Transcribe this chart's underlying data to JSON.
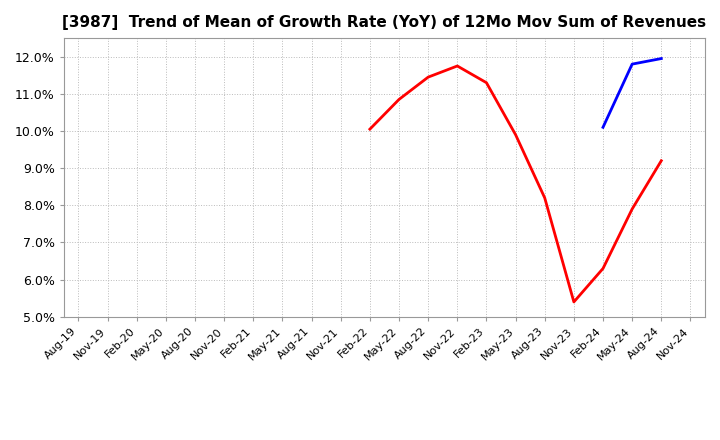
{
  "title": "[3987]  Trend of Mean of Growth Rate (YoY) of 12Mo Mov Sum of Revenues",
  "ylim": [
    0.05,
    0.125
  ],
  "yticks": [
    0.05,
    0.06,
    0.07,
    0.08,
    0.09,
    0.1,
    0.11,
    0.12
  ],
  "background_color": "#ffffff",
  "grid_color": "#bbbbbb",
  "x_labels": [
    "Aug-19",
    "Nov-19",
    "Feb-20",
    "May-20",
    "Aug-20",
    "Nov-20",
    "Feb-21",
    "May-21",
    "Aug-21",
    "Nov-21",
    "Feb-22",
    "May-22",
    "Aug-22",
    "Nov-22",
    "Feb-23",
    "May-23",
    "Aug-23",
    "Nov-23",
    "Feb-24",
    "May-24",
    "Aug-24",
    "Nov-24"
  ],
  "series_3y": {
    "color": "#ff0000",
    "x": [
      10,
      11,
      12,
      13,
      14,
      15,
      16,
      17,
      18,
      19,
      20
    ],
    "y": [
      0.1005,
      0.1085,
      0.1145,
      0.1175,
      0.113,
      0.099,
      0.082,
      0.054,
      0.063,
      0.079,
      0.092
    ]
  },
  "series_5y": {
    "color": "#0000ff",
    "x": [
      18,
      19,
      20
    ],
    "y": [
      0.101,
      0.118,
      0.1195
    ]
  },
  "series_7y": {
    "color": "#00cccc",
    "x": [],
    "y": []
  },
  "series_10y": {
    "color": "#006600",
    "x": [],
    "y": []
  },
  "title_fontsize": 11,
  "tick_fontsize": 9,
  "legend_fontsize": 9
}
